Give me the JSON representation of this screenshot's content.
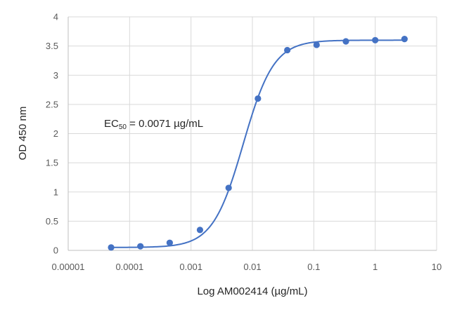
{
  "chart_data": {
    "type": "scatter",
    "title": "",
    "xlabel": "Log AM002414 (µg/mL)",
    "ylabel": "OD 450 nm",
    "x_scale": "log",
    "xlim": [
      1e-05,
      10
    ],
    "ylim": [
      0,
      4
    ],
    "grid": true,
    "x_tick_labels": [
      "0.00001",
      "0.0001",
      "0.001",
      "0.01",
      "0.1",
      "1",
      "10"
    ],
    "y_tick_labels": [
      "0",
      "0.5",
      "1",
      "1.5",
      "2",
      "2.5",
      "3",
      "3.5",
      "4"
    ],
    "series": [
      {
        "color": "#4472c4",
        "x": [
          5e-05,
          0.00015,
          0.00045,
          0.0014,
          0.0041,
          0.0123,
          0.037,
          0.111,
          0.333,
          1,
          3
        ],
        "y": [
          0.05,
          0.07,
          0.13,
          0.35,
          1.07,
          2.6,
          3.43,
          3.52,
          3.58,
          3.6,
          3.62
        ]
      }
    ],
    "fit": {
      "color": "#4472c4",
      "bottom": 0.05,
      "top": 3.6,
      "ec50": 0.0071,
      "hill": 1.75
    },
    "annotation": {
      "prefix": "EC",
      "subscript": "50",
      "suffix": " = 0.0071 µg/mL"
    }
  }
}
